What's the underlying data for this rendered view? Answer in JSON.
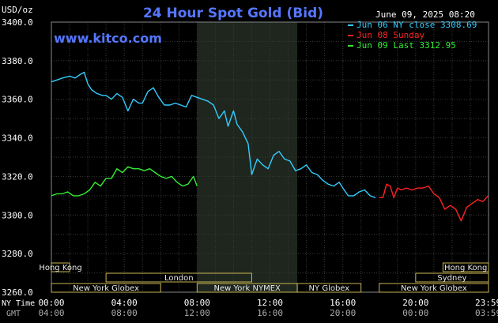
{
  "header": {
    "unit": "USD/oz",
    "title": "24 Hour Spot Gold (Bid)",
    "timestamp": "June 09, 2025 08:20",
    "watermark": "www.kitco.com"
  },
  "legend": [
    {
      "label": "Jun 06 NY close 3308.69",
      "color": "#33ccff"
    },
    {
      "label": "Jun 08 Sunday",
      "color": "#ff2222"
    },
    {
      "label": "Jun 09 Last 3312.95",
      "color": "#33ee33"
    }
  ],
  "axis_labels": {
    "ny_time": "NY Time",
    "gmt": "GMT"
  },
  "sessions": [
    {
      "name": "Hong Kong",
      "start": -1.0,
      "end": 1.0,
      "row": 0
    },
    {
      "name": "Hong Kong",
      "start": 21.5,
      "end": 24.0,
      "row": 0
    },
    {
      "name": "London",
      "start": 3.0,
      "end": 11.0,
      "row": 1
    },
    {
      "name": "Sydney",
      "start": 20.0,
      "end": 24.0,
      "row": 1
    },
    {
      "name": "New York Globex",
      "start": 0.0,
      "end": 6.0,
      "row": 2
    },
    {
      "name": "New York NYMEX",
      "start": 8.0,
      "end": 13.5,
      "row": 2
    },
    {
      "name": "NY Globex",
      "start": 13.5,
      "end": 17.0,
      "row": 2
    },
    {
      "name": "New York Globex",
      "start": 18.0,
      "end": 24.0,
      "row": 2
    }
  ],
  "chart_data": {
    "type": "line",
    "title": "24 Hour Spot Gold (Bid)",
    "ylabel": "USD/oz",
    "xlabel": "NY Time",
    "xlim": [
      0,
      24
    ],
    "ylim": [
      3260,
      3400
    ],
    "yticks": [
      3260,
      3280,
      3300,
      3320,
      3340,
      3360,
      3380,
      3400
    ],
    "ytick_labels": [
      "3260.0",
      "3280.0",
      "3300.0",
      "3320.0",
      "3340.0",
      "3360.0",
      "3380.0",
      "3400.0"
    ],
    "xticks": [
      0,
      4,
      8,
      12,
      16,
      20,
      23.983
    ],
    "xtick_labels_ny": [
      "00:00",
      "04:00",
      "08:00",
      "12:00",
      "16:00",
      "20:00",
      "23:59"
    ],
    "xtick_labels_gmt": [
      "04:00",
      "08:00",
      "12:00",
      "16:00",
      "20:00",
      "00:00",
      "03:59"
    ],
    "shaded_region": [
      8.0,
      13.5
    ],
    "grid": true,
    "series": [
      {
        "name": "Jun 06 NY close 3308.69",
        "color": "#33ccff",
        "x": [
          0,
          0.3,
          0.6,
          1.0,
          1.3,
          1.6,
          1.8,
          2.0,
          2.2,
          2.5,
          2.8,
          3.0,
          3.3,
          3.6,
          3.9,
          4.2,
          4.5,
          4.8,
          5.0,
          5.3,
          5.6,
          5.9,
          6.2,
          6.5,
          6.8,
          7.1,
          7.4,
          7.7,
          8.0,
          8.3,
          8.6,
          8.9,
          9.2,
          9.5,
          9.7,
          10.0,
          10.2,
          10.5,
          10.8,
          11.0,
          11.3,
          11.6,
          11.9,
          12.2,
          12.5,
          12.8,
          13.1,
          13.4,
          13.7,
          14.0,
          14.3,
          14.6,
          14.9,
          15.2,
          15.5,
          15.8,
          16.0,
          16.3,
          16.6,
          16.9,
          17.2,
          17.5,
          17.8
        ],
        "y": [
          3369,
          3370,
          3371,
          3372,
          3371,
          3373,
          3374,
          3368,
          3365,
          3363,
          3362,
          3362,
          3360,
          3363,
          3361,
          3354,
          3360,
          3358,
          3358,
          3364,
          3366,
          3361,
          3357,
          3357,
          3358,
          3357,
          3356,
          3362,
          3361,
          3360,
          3359,
          3357,
          3350,
          3354,
          3346,
          3354,
          3347,
          3343,
          3337,
          3321,
          3329,
          3326,
          3324,
          3331,
          3333,
          3329,
          3328,
          3323,
          3324,
          3326,
          3322,
          3321,
          3318,
          3316,
          3315,
          3317,
          3314,
          3310,
          3310,
          3312,
          3313,
          3310,
          3309
        ]
      },
      {
        "name": "Jun 08 Sunday",
        "color": "#ff2222",
        "x": [
          18.0,
          18.2,
          18.4,
          18.6,
          18.8,
          19.0,
          19.2,
          19.5,
          19.8,
          20.1,
          20.4,
          20.7,
          21.0,
          21.3,
          21.6,
          21.9,
          22.2,
          22.5,
          22.8,
          23.1,
          23.4,
          23.7,
          23.98
        ],
        "y": [
          3309,
          3309,
          3316,
          3315,
          3309,
          3314,
          3313,
          3314,
          3313,
          3314,
          3314,
          3315,
          3311,
          3309,
          3303,
          3305,
          3303,
          3297,
          3304,
          3306,
          3308,
          3307,
          3310
        ]
      },
      {
        "name": "Jun 09 Last 3312.95",
        "color": "#33ee33",
        "x": [
          0,
          0.3,
          0.6,
          0.9,
          1.2,
          1.5,
          1.8,
          2.1,
          2.4,
          2.7,
          3.0,
          3.3,
          3.6,
          3.9,
          4.2,
          4.5,
          4.8,
          5.1,
          5.4,
          5.7,
          6.0,
          6.3,
          6.6,
          6.9,
          7.2,
          7.5,
          7.8,
          8.0
        ],
        "y": [
          3310,
          3311,
          3311,
          3312,
          3310,
          3310,
          3311,
          3313,
          3317,
          3315,
          3319,
          3319,
          3324,
          3322,
          3325,
          3324,
          3324,
          3323,
          3324,
          3322,
          3320,
          3319,
          3320,
          3317,
          3315,
          3316,
          3320,
          3315
        ]
      }
    ]
  }
}
